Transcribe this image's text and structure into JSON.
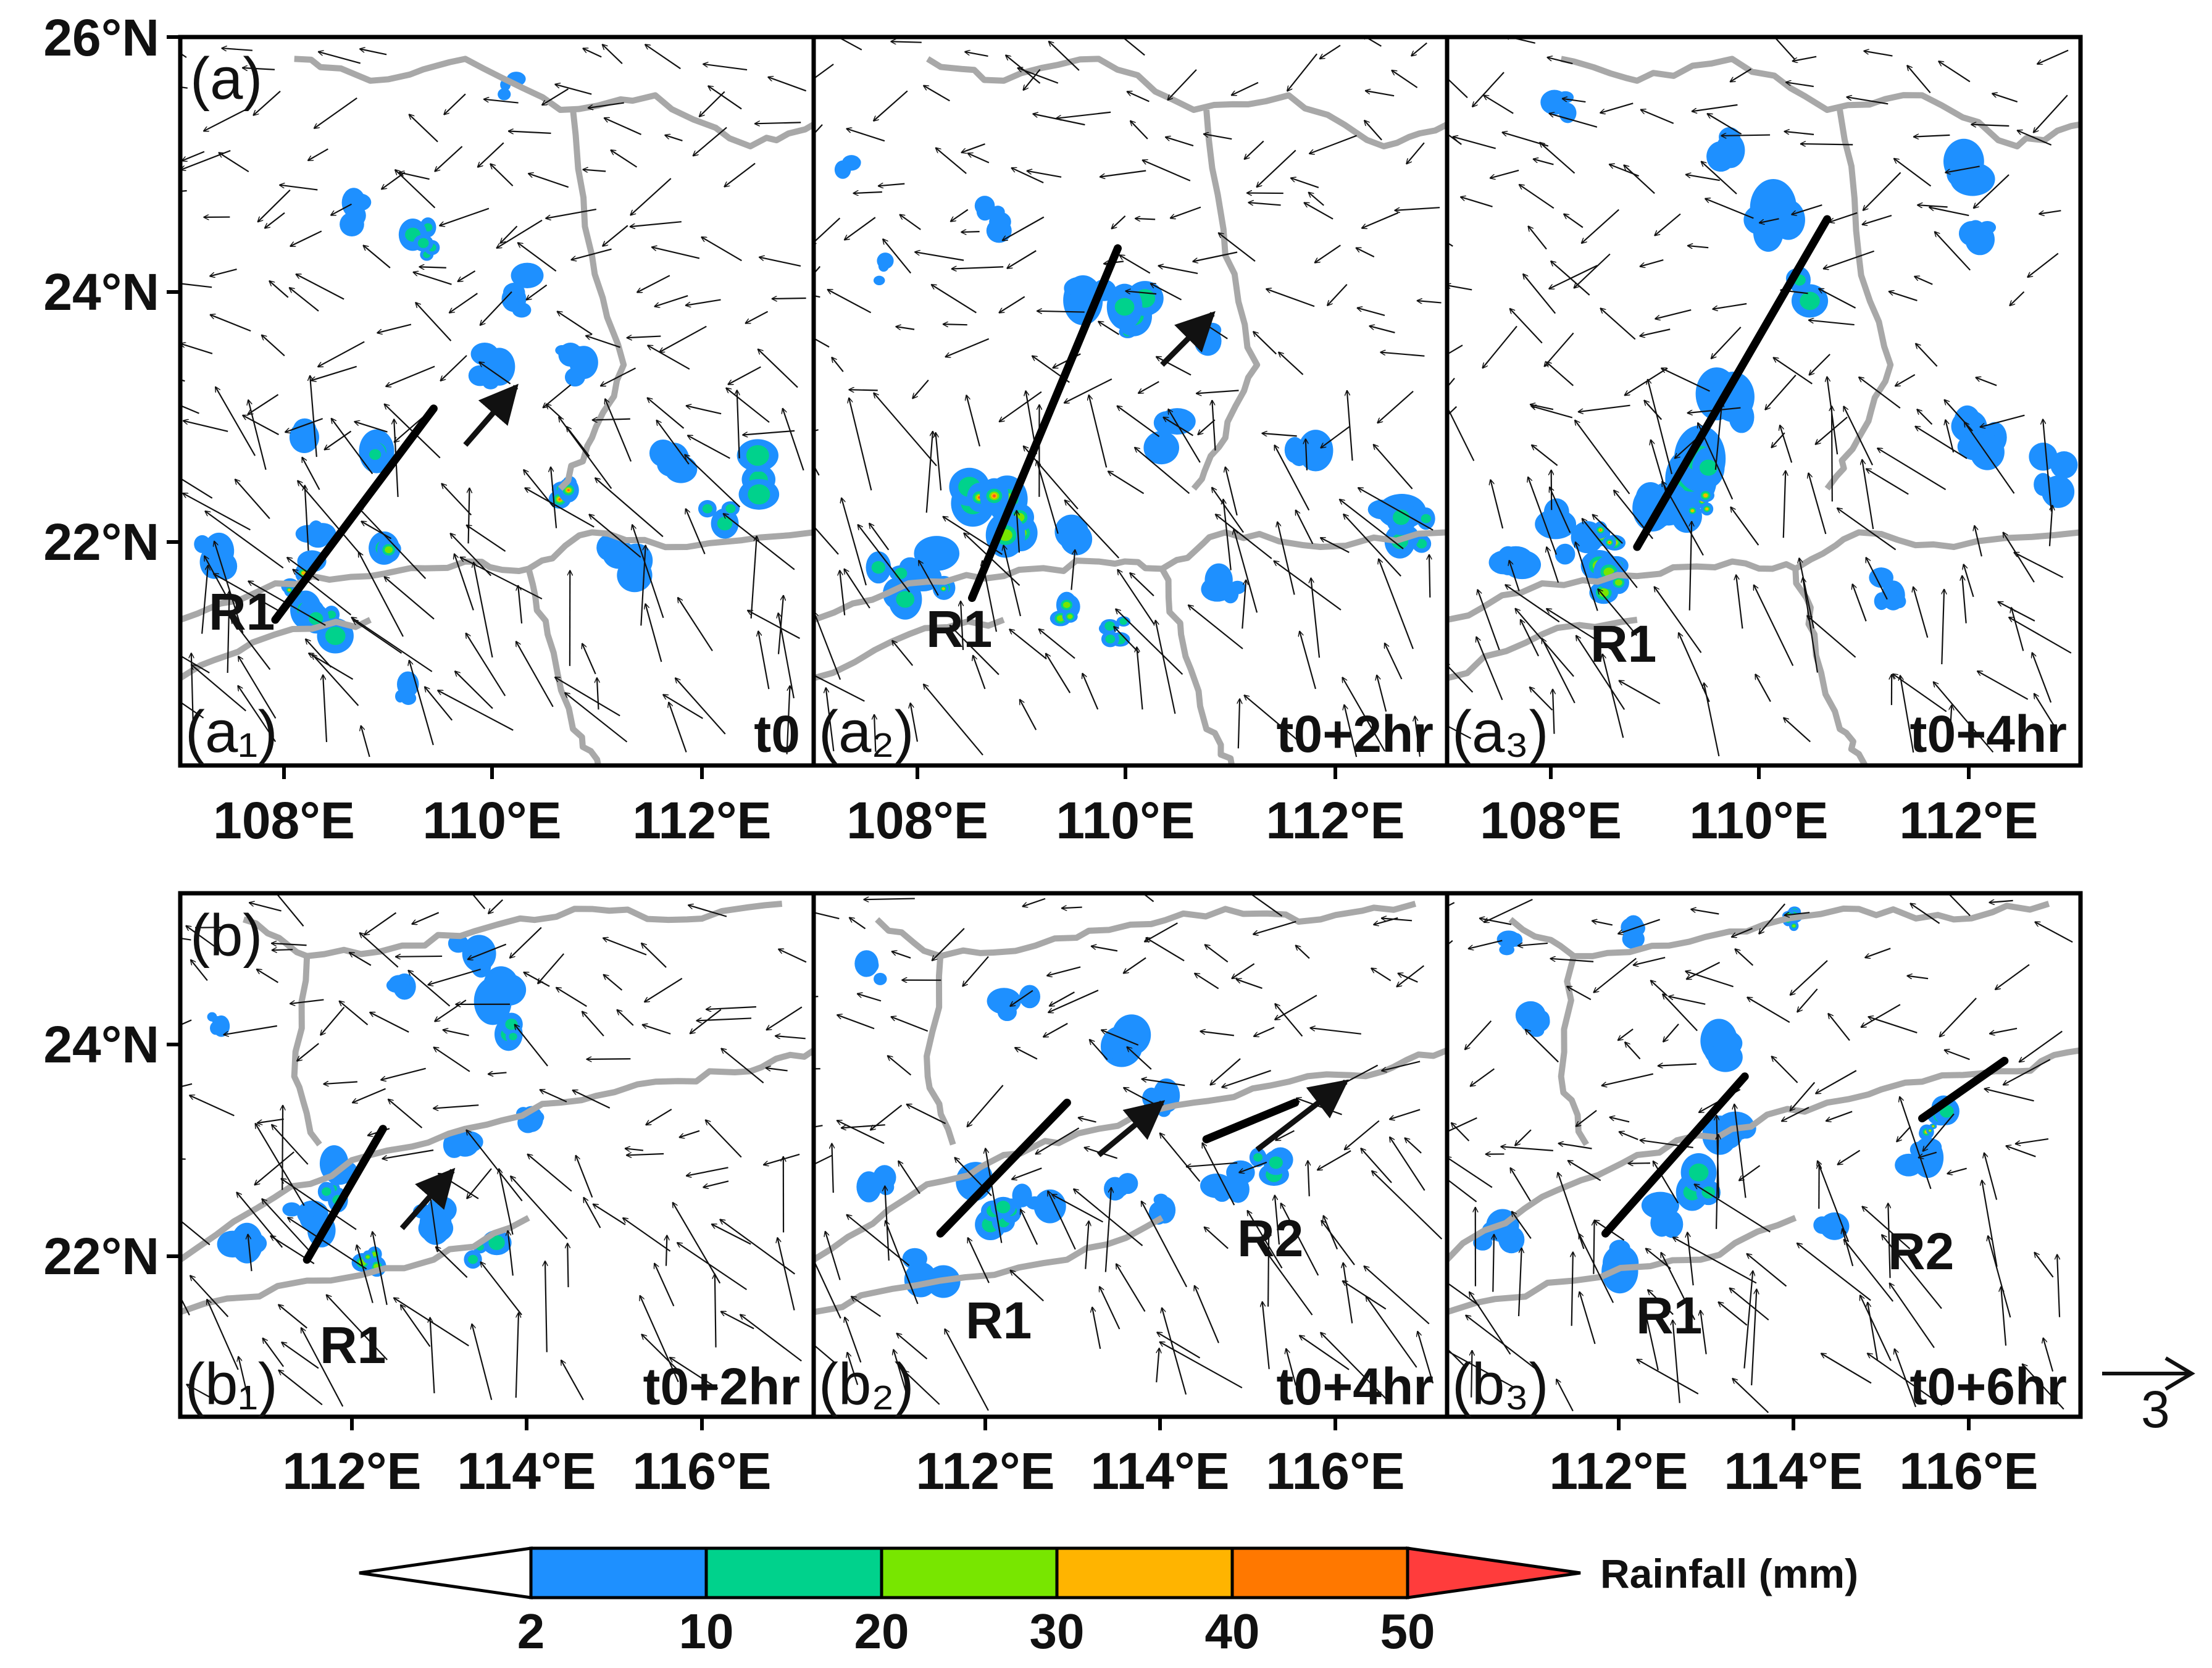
{
  "figure": {
    "row_a": {
      "letter": "(a)",
      "lat_labels": [
        "26°N",
        "24°N",
        "22°N"
      ],
      "lon_labels": [
        "108°E",
        "110°E",
        "112°E"
      ],
      "panels": [
        {
          "id": "a1",
          "label": "(a₁)",
          "time": "t0",
          "bands": [
            "R1"
          ]
        },
        {
          "id": "a2",
          "label": "(a₂)",
          "time": "t0+2hr",
          "bands": [
            "R1"
          ]
        },
        {
          "id": "a3",
          "label": "(a₃)",
          "time": "t0+4hr",
          "bands": [
            "R1"
          ]
        }
      ]
    },
    "row_b": {
      "letter": "(b)",
      "lat_labels": [
        "24°N",
        "22°N"
      ],
      "lon_labels": [
        "112°E",
        "114°E",
        "116°E"
      ],
      "panels": [
        {
          "id": "b1",
          "label": "(b₁)",
          "time": "t0+2hr",
          "bands": [
            "R1"
          ]
        },
        {
          "id": "b2",
          "label": "(b₂)",
          "time": "t0+4hr",
          "bands": [
            "R1",
            "R2"
          ]
        },
        {
          "id": "b3",
          "label": "(b₃)",
          "time": "t0+6hr",
          "bands": [
            "R1",
            "R2"
          ]
        }
      ]
    },
    "reference_vector": {
      "label": "3"
    },
    "colorbar": {
      "title": "Rainfall (mm)",
      "ticks": [
        "2",
        "10",
        "20",
        "30",
        "40",
        "50"
      ],
      "colors": {
        "under": "#ffffff",
        "c2_10": "#1e90ff",
        "c10_20": "#00d28c",
        "c20_30": "#78e600",
        "c30_40": "#ffb400",
        "c40_50": "#ff7800",
        "over": "#ff3c3c"
      }
    },
    "styles": {
      "coast_color": "#a8a8a8",
      "arrow_color": "#111111",
      "band_color": "#000000"
    }
  }
}
